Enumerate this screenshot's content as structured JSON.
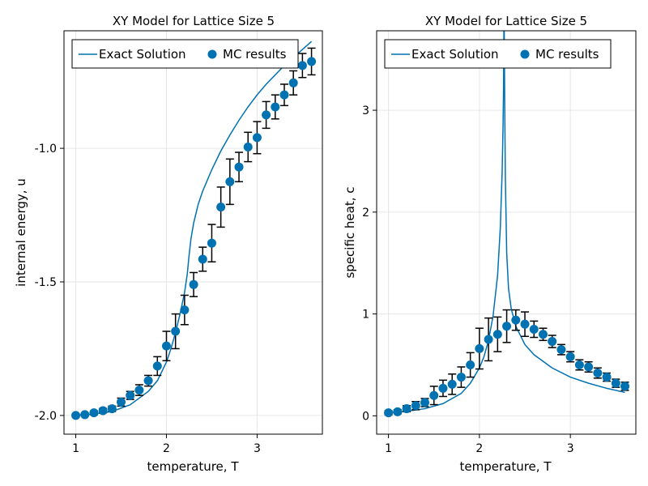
{
  "colors": {
    "series": "#0072b2",
    "errorbar": "#000000",
    "grid": "#e6e6e6",
    "frame": "#000000"
  },
  "chart_data": [
    {
      "type": "scatter",
      "title": "XY Model for Lattice Size 5",
      "xlabel": "temperature, T",
      "ylabel": "internal energy, u",
      "xlim": [
        0.87,
        3.72
      ],
      "ylim": [
        -2.07,
        -0.56
      ],
      "xticks": [
        1,
        2,
        3
      ],
      "xtick_labels": [
        "1",
        "2",
        "3"
      ],
      "yticks": [
        -1.0,
        -1.5,
        -2.0
      ],
      "ytick_labels": [
        "-1.0",
        "-1.5",
        "-2.0"
      ],
      "grid": true,
      "legend": {
        "placement": "top",
        "entries": [
          {
            "label": "Exact Solution",
            "marker": "line"
          },
          {
            "label": "MC results",
            "marker": "circle"
          }
        ]
      },
      "exact_solution": {
        "x": [
          1.0,
          1.2,
          1.4,
          1.6,
          1.8,
          1.9,
          2.0,
          2.05,
          2.1,
          2.15,
          2.2,
          2.23,
          2.25,
          2.27,
          2.3,
          2.35,
          2.4,
          2.5,
          2.6,
          2.7,
          2.8,
          2.9,
          3.0,
          3.1,
          3.2,
          3.3,
          3.4,
          3.5,
          3.6
        ],
        "y": [
          -2.0,
          -1.995,
          -1.985,
          -1.96,
          -1.91,
          -1.87,
          -1.8,
          -1.75,
          -1.69,
          -1.62,
          -1.54,
          -1.47,
          -1.4,
          -1.34,
          -1.28,
          -1.21,
          -1.16,
          -1.08,
          -1.01,
          -0.95,
          -0.895,
          -0.845,
          -0.8,
          -0.76,
          -0.725,
          -0.69,
          -0.66,
          -0.63,
          -0.6
        ]
      },
      "mc_results": {
        "x": [
          1.0,
          1.1,
          1.2,
          1.3,
          1.4,
          1.5,
          1.6,
          1.7,
          1.8,
          1.9,
          2.0,
          2.1,
          2.2,
          2.3,
          2.4,
          2.5,
          2.6,
          2.7,
          2.8,
          2.9,
          3.0,
          3.1,
          3.2,
          3.3,
          3.4,
          3.5,
          3.6
        ],
        "y": [
          -2.0,
          -1.997,
          -1.99,
          -1.982,
          -1.975,
          -1.95,
          -1.925,
          -1.905,
          -1.87,
          -1.815,
          -1.74,
          -1.685,
          -1.605,
          -1.51,
          -1.415,
          -1.355,
          -1.22,
          -1.125,
          -1.07,
          -0.995,
          -0.96,
          -0.875,
          -0.845,
          -0.8,
          -0.755,
          -0.69,
          -0.675
        ],
        "err": [
          0.005,
          0.005,
          0.007,
          0.008,
          0.01,
          0.015,
          0.015,
          0.02,
          0.02,
          0.035,
          0.055,
          0.065,
          0.055,
          0.045,
          0.045,
          0.07,
          0.075,
          0.085,
          0.055,
          0.055,
          0.06,
          0.05,
          0.045,
          0.04,
          0.045,
          0.045,
          0.05
        ]
      }
    },
    {
      "type": "scatter",
      "title": "XY Model for Lattice Size 5",
      "xlabel": "temperature, T",
      "ylabel": "specific heat, c",
      "xlim": [
        0.87,
        3.72
      ],
      "ylim": [
        -0.18,
        3.78
      ],
      "xticks": [
        1,
        2,
        3
      ],
      "xtick_labels": [
        "1",
        "2",
        "3"
      ],
      "yticks": [
        0,
        1,
        2,
        3
      ],
      "ytick_labels": [
        "0",
        "1",
        "2",
        "3"
      ],
      "grid": true,
      "legend": {
        "placement": "top",
        "entries": [
          {
            "label": "Exact Solution",
            "marker": "line"
          },
          {
            "label": "MC results",
            "marker": "circle"
          }
        ]
      },
      "exact_solution": {
        "x": [
          1.0,
          1.2,
          1.4,
          1.6,
          1.8,
          1.9,
          2.0,
          2.05,
          2.1,
          2.15,
          2.2,
          2.23,
          2.25,
          2.26,
          2.265,
          2.269,
          2.273,
          2.278,
          2.285,
          2.3,
          2.32,
          2.35,
          2.4,
          2.5,
          2.6,
          2.8,
          3.0,
          3.2,
          3.4,
          3.6
        ],
        "y": [
          0.03,
          0.045,
          0.07,
          0.12,
          0.22,
          0.32,
          0.47,
          0.58,
          0.74,
          0.98,
          1.38,
          1.85,
          2.4,
          2.85,
          3.2,
          3.78,
          3.78,
          3.1,
          2.35,
          1.6,
          1.25,
          1.05,
          0.88,
          0.7,
          0.6,
          0.47,
          0.38,
          0.32,
          0.27,
          0.23
        ]
      },
      "mc_results": {
        "x": [
          1.0,
          1.1,
          1.2,
          1.3,
          1.4,
          1.5,
          1.6,
          1.7,
          1.8,
          1.9,
          2.0,
          2.1,
          2.2,
          2.3,
          2.4,
          2.5,
          2.6,
          2.7,
          2.8,
          2.9,
          3.0,
          3.1,
          3.2,
          3.3,
          3.4,
          3.5,
          3.6
        ],
        "y": [
          0.03,
          0.04,
          0.07,
          0.1,
          0.13,
          0.2,
          0.27,
          0.31,
          0.38,
          0.5,
          0.66,
          0.75,
          0.8,
          0.88,
          0.94,
          0.9,
          0.85,
          0.8,
          0.73,
          0.65,
          0.58,
          0.5,
          0.48,
          0.42,
          0.38,
          0.32,
          0.29
        ],
        "err": [
          0.02,
          0.02,
          0.03,
          0.04,
          0.04,
          0.09,
          0.08,
          0.1,
          0.1,
          0.12,
          0.2,
          0.21,
          0.17,
          0.16,
          0.1,
          0.12,
          0.08,
          0.06,
          0.06,
          0.05,
          0.05,
          0.05,
          0.05,
          0.05,
          0.04,
          0.04,
          0.04
        ]
      }
    }
  ]
}
